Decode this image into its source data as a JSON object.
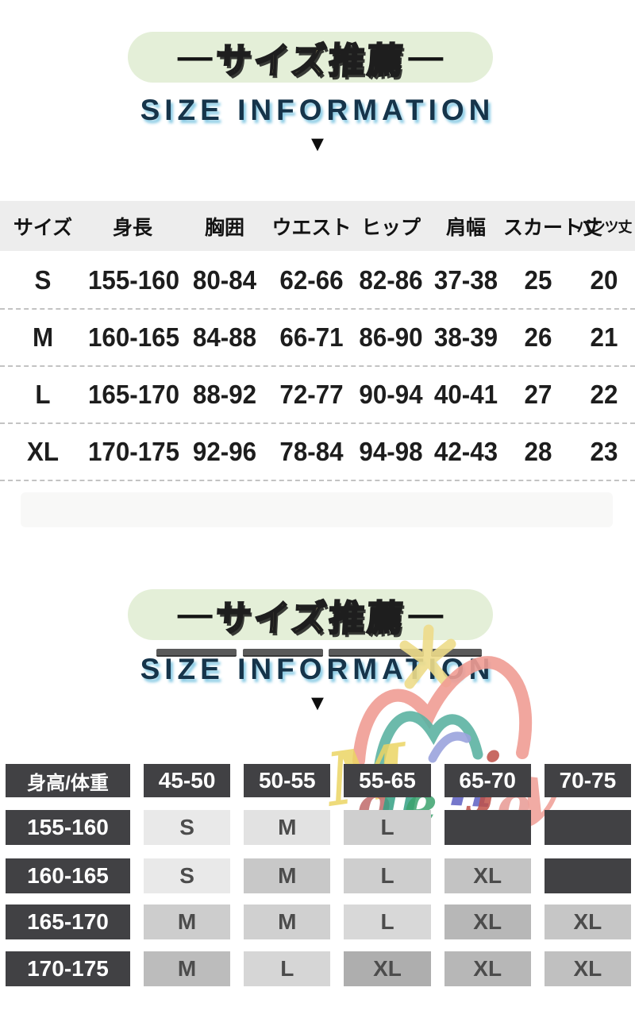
{
  "section1": {
    "badge": {
      "dash": "—",
      "title": "サイズ推薦"
    },
    "subtitle": "SIZE INFORMATION",
    "arrow": "▼",
    "table": {
      "columns": [
        "サイズ",
        "身長",
        "胸囲",
        "ウエスト",
        "ヒップ",
        "肩幅",
        "スカート丈",
        "パンツ丈"
      ],
      "rows": [
        [
          "S",
          "155-160",
          "80-84",
          "62-66",
          "82-86",
          "37-38",
          "25",
          "20"
        ],
        [
          "M",
          "160-165",
          "84-88",
          "66-71",
          "86-90",
          "38-39",
          "26",
          "21"
        ],
        [
          "L",
          "165-170",
          "88-92",
          "72-77",
          "90-94",
          "40-41",
          "27",
          "22"
        ],
        [
          "XL",
          "170-175",
          "92-96",
          "78-84",
          "94-98",
          "42-43",
          "28",
          "23"
        ]
      ]
    }
  },
  "section2": {
    "badge": {
      "dash": "—",
      "title": "サイズ推薦"
    },
    "subtitle": "SIZE INFORMATION",
    "arrow": "▼",
    "watermark": {
      "brand": "Monenjoy",
      "letters": [
        {
          "ch": "M",
          "color": "#ecd564"
        },
        {
          "ch": "o",
          "color": "#c06a6a"
        },
        {
          "ch": "n",
          "color": "#35a084"
        },
        {
          "ch": "e",
          "color": "#3ba36e"
        },
        {
          "ch": "n",
          "color": "#5d60c2"
        },
        {
          "ch": "j",
          "color": "#bf5148"
        },
        {
          "ch": "o",
          "color": "#e89a93"
        },
        {
          "ch": "y",
          "color": "#ef9d95"
        }
      ]
    },
    "matrix": {
      "corner_label": "身高/体重",
      "weight_columns": [
        "45-50",
        "50-55",
        "55-65",
        "65-70",
        "70-75"
      ],
      "rows": [
        {
          "height": "155-160",
          "cells": [
            {
              "size": "S",
              "bg": "#e9e9e9"
            },
            {
              "size": "M",
              "bg": "#e2e2e2"
            },
            {
              "size": "L",
              "bg": "#cfcfcf"
            },
            {
              "size": "",
              "bg": "#414144"
            },
            {
              "size": "",
              "bg": "#414144"
            }
          ]
        },
        {
          "height": "160-165",
          "cells": [
            {
              "size": "S",
              "bg": "#e9e9e9"
            },
            {
              "size": "M",
              "bg": "#c8c8c8"
            },
            {
              "size": "L",
              "bg": "#cecece"
            },
            {
              "size": "XL",
              "bg": "#c3c3c3"
            },
            {
              "size": "",
              "bg": "#414144"
            }
          ]
        },
        {
          "height": "165-170",
          "cells": [
            {
              "size": "M",
              "bg": "#cdcdcd"
            },
            {
              "size": "M",
              "bg": "#d0d0d0"
            },
            {
              "size": "L",
              "bg": "#d8d8d8"
            },
            {
              "size": "XL",
              "bg": "#b7b7b7"
            },
            {
              "size": "XL",
              "bg": "#c6c6c6"
            }
          ]
        },
        {
          "height": "170-175",
          "cells": [
            {
              "size": "M",
              "bg": "#bcbcbc"
            },
            {
              "size": "L",
              "bg": "#d6d6d6"
            },
            {
              "size": "XL",
              "bg": "#aeaeae"
            },
            {
              "size": "XL",
              "bg": "#b7b7b7"
            },
            {
              "size": "XL",
              "bg": "#c0c0c0"
            }
          ]
        }
      ]
    }
  },
  "colors": {
    "pill_bg": "#e4efd8",
    "badge_text": "#f7ef9c",
    "subtitle_text": "#16344a",
    "table1_header_bg": "#ededed",
    "matrix_dark_cell": "#414144"
  }
}
